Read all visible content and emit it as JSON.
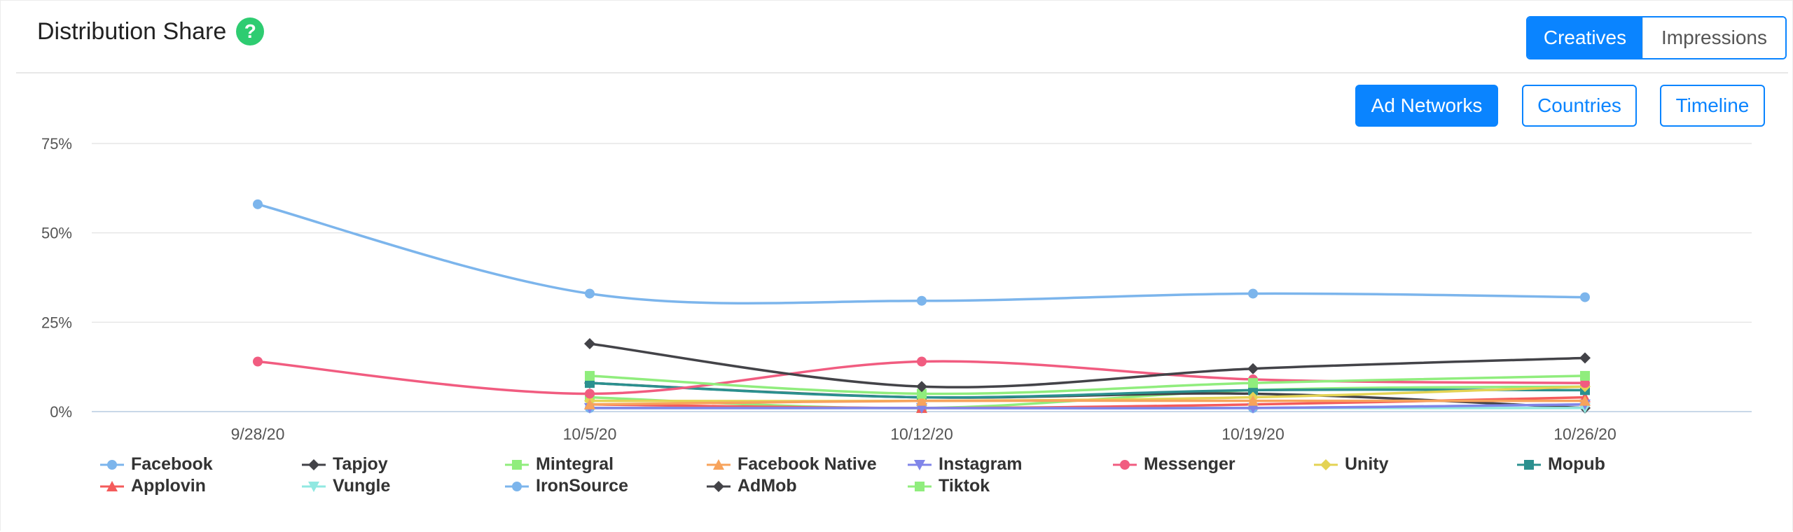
{
  "header": {
    "title": "Distribution Share",
    "help_icon": "?",
    "toggle": [
      {
        "label": "Creatives",
        "active": true
      },
      {
        "label": "Impressions",
        "active": false
      }
    ]
  },
  "view_buttons": [
    {
      "label": "Ad Networks",
      "active": true
    },
    {
      "label": "Countries",
      "active": false
    },
    {
      "label": "Timeline",
      "active": false
    }
  ],
  "colors": {
    "accent": "#0a84ff",
    "help": "#2ecc71"
  },
  "chart_data": {
    "type": "line",
    "x": [
      "9/28/20",
      "10/5/20",
      "10/12/20",
      "10/19/20",
      "10/26/20"
    ],
    "y_ticks": [
      "75%",
      "50%",
      "25%",
      "0%"
    ],
    "ylim": [
      0,
      75
    ],
    "grid": true,
    "legend_position": "bottom",
    "series": [
      {
        "name": "Facebook",
        "color": "#7cb5ec",
        "marker": "circle",
        "values": [
          58,
          33,
          31,
          33,
          32
        ]
      },
      {
        "name": "Tapjoy",
        "color": "#434348",
        "marker": "diamond",
        "values": [
          null,
          19,
          7,
          12,
          15
        ]
      },
      {
        "name": "Mintegral",
        "color": "#90ed7d",
        "marker": "square",
        "values": [
          null,
          10,
          5,
          8,
          10
        ]
      },
      {
        "name": "Facebook Native",
        "color": "#f7a35c",
        "marker": "triangle",
        "values": [
          null,
          2,
          3,
          3,
          3
        ]
      },
      {
        "name": "Instagram",
        "color": "#8085e9",
        "marker": "triangle-down",
        "values": [
          null,
          1,
          1,
          1,
          2
        ]
      },
      {
        "name": "Messenger",
        "color": "#f15c80",
        "marker": "circle",
        "values": [
          14,
          5,
          14,
          9,
          8
        ]
      },
      {
        "name": "Unity",
        "color": "#e4d354",
        "marker": "diamond",
        "values": [
          null,
          3,
          3,
          4,
          7
        ]
      },
      {
        "name": "Mopub",
        "color": "#2b908f",
        "marker": "square",
        "values": [
          null,
          8,
          4,
          6,
          6
        ]
      },
      {
        "name": "Applovin",
        "color": "#f45b5b",
        "marker": "triangle",
        "values": [
          null,
          2,
          1,
          2,
          4
        ]
      },
      {
        "name": "Vungle",
        "color": "#91e8e1",
        "marker": "triangle-down",
        "values": [
          null,
          1,
          1,
          1,
          1
        ]
      },
      {
        "name": "IronSource",
        "color": "#7cb5ec",
        "marker": "circle",
        "values": [
          null,
          1,
          1,
          1,
          2
        ]
      },
      {
        "name": "AdMob",
        "color": "#434348",
        "marker": "diamond",
        "values": [
          null,
          8,
          4,
          5,
          1
        ]
      },
      {
        "name": "Tiktok",
        "color": "#90ed7d",
        "marker": "square",
        "values": [
          null,
          4,
          1,
          6,
          7
        ]
      }
    ]
  }
}
